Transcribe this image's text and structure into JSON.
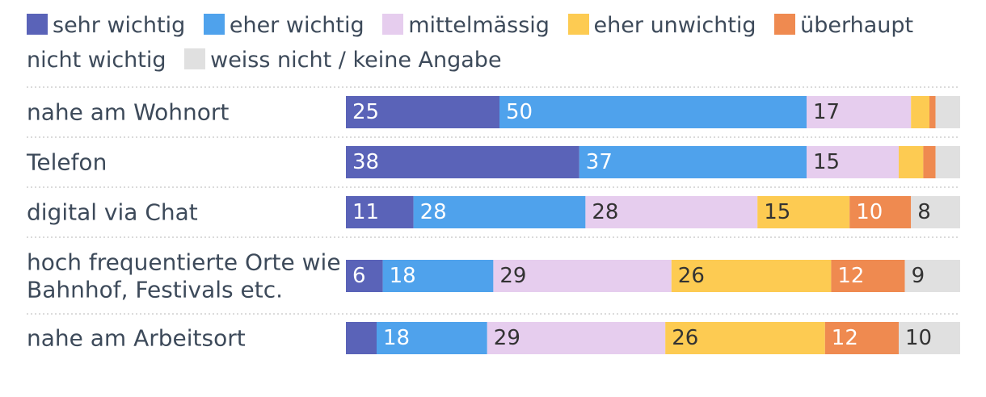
{
  "chart_data": {
    "type": "bar",
    "stacked": true,
    "orientation": "horizontal",
    "categories": [
      "nahe am Wohnort",
      "Telefon",
      "digital via Chat",
      "hoch frequentierte Orte wie Bahnhof, Festivals etc.",
      "nahe am Arbeitsort"
    ],
    "category_lines": [
      [
        "nahe am Wohnort"
      ],
      [
        "Telefon"
      ],
      [
        "digital via Chat"
      ],
      [
        "hoch frequentierte Orte wie",
        "Bahnhof, Festivals etc."
      ],
      [
        "nahe am Arbeitsort"
      ]
    ],
    "series": [
      {
        "name": "sehr wichtig",
        "color": "#5a63b8",
        "label_color": "#ffffff",
        "values": [
          25,
          38,
          11,
          6,
          5
        ]
      },
      {
        "name": "eher wichtig",
        "color": "#4fa2ec",
        "label_color": "#ffffff",
        "values": [
          50,
          37,
          28,
          18,
          18
        ]
      },
      {
        "name": "mittelmässig",
        "color": "#e6cdee",
        "label_color": "#333333",
        "values": [
          17,
          15,
          28,
          29,
          29
        ]
      },
      {
        "name": "eher unwichtig",
        "color": "#fdcb52",
        "label_color": "#333333",
        "values": [
          3,
          4,
          15,
          26,
          26
        ]
      },
      {
        "name": "überhaupt nicht wichtig",
        "color": "#ef8a50",
        "label_color": "#ffffff",
        "values": [
          1,
          2,
          10,
          12,
          12
        ]
      },
      {
        "name": "weiss nicht / keine Angabe",
        "color": "#e0e0e0",
        "label_color": "#333333",
        "values": [
          4,
          4,
          8,
          9,
          10
        ]
      }
    ],
    "label_threshold": 5,
    "legend_position": "top",
    "xlim": [
      0,
      100
    ]
  }
}
